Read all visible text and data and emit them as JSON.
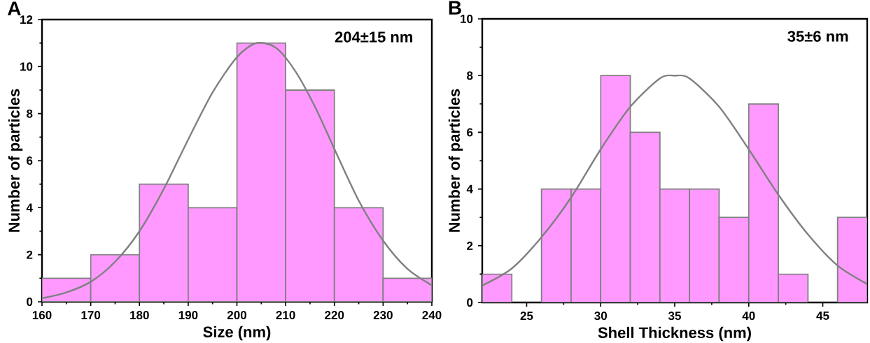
{
  "chart_data": [
    {
      "type": "histogram",
      "title": "A",
      "xlabel": "Size (nm)",
      "ylabel": "Number of particles",
      "annotations": [
        "204±15 nm"
      ],
      "bins": [
        160,
        170,
        180,
        190,
        200,
        210,
        220,
        230,
        240
      ],
      "values": [
        1,
        2,
        5,
        4,
        11,
        9,
        4,
        1
      ],
      "color": "#ff99ff",
      "series": [
        {
          "type": "line",
          "color": "#808080",
          "x": [
            160,
            165,
            170,
            175,
            180,
            185,
            190,
            195,
            200,
            204,
            208,
            212,
            216,
            220,
            225,
            230,
            235,
            240
          ],
          "values": [
            0.15,
            0.4,
            0.85,
            1.7,
            3.0,
            4.8,
            6.9,
            8.9,
            10.4,
            11,
            10.8,
            9.8,
            8.3,
            6.5,
            4.3,
            2.6,
            1.4,
            0.7
          ]
        }
      ],
      "xlim": [
        160,
        240
      ],
      "xticks": [
        160,
        170,
        180,
        190,
        200,
        210,
        220,
        230,
        240
      ],
      "ylim": [
        0,
        12
      ],
      "yticks": [
        0,
        2,
        4,
        6,
        8,
        10,
        12
      ]
    },
    {
      "type": "histogram",
      "title": "B",
      "xlabel": "Shell Thickness (nm)",
      "ylabel": "Number of particles",
      "annotations": [
        "35±6 nm"
      ],
      "bins": [
        22,
        24,
        26,
        28,
        30,
        32,
        34,
        36,
        38,
        40,
        42,
        44,
        46,
        48
      ],
      "values": [
        1,
        0,
        4,
        4,
        8,
        6,
        4,
        4,
        3,
        7,
        1,
        0,
        3
      ],
      "color": "#ff99ff",
      "series": [
        {
          "type": "line",
          "color": "#808080",
          "x": [
            22,
            24,
            26,
            28,
            30,
            32,
            34,
            35,
            36,
            38,
            40,
            42,
            44,
            46,
            48
          ],
          "values": [
            0.6,
            1.2,
            2.3,
            3.7,
            5.4,
            6.9,
            7.9,
            8,
            7.9,
            6.9,
            5.4,
            3.8,
            2.4,
            1.3,
            0.65
          ]
        }
      ],
      "xlim": [
        22,
        48
      ],
      "xticks": [
        25,
        30,
        35,
        40,
        45
      ],
      "ylim": [
        0,
        10
      ],
      "yticks": [
        0,
        2,
        4,
        6,
        8,
        10
      ]
    }
  ]
}
